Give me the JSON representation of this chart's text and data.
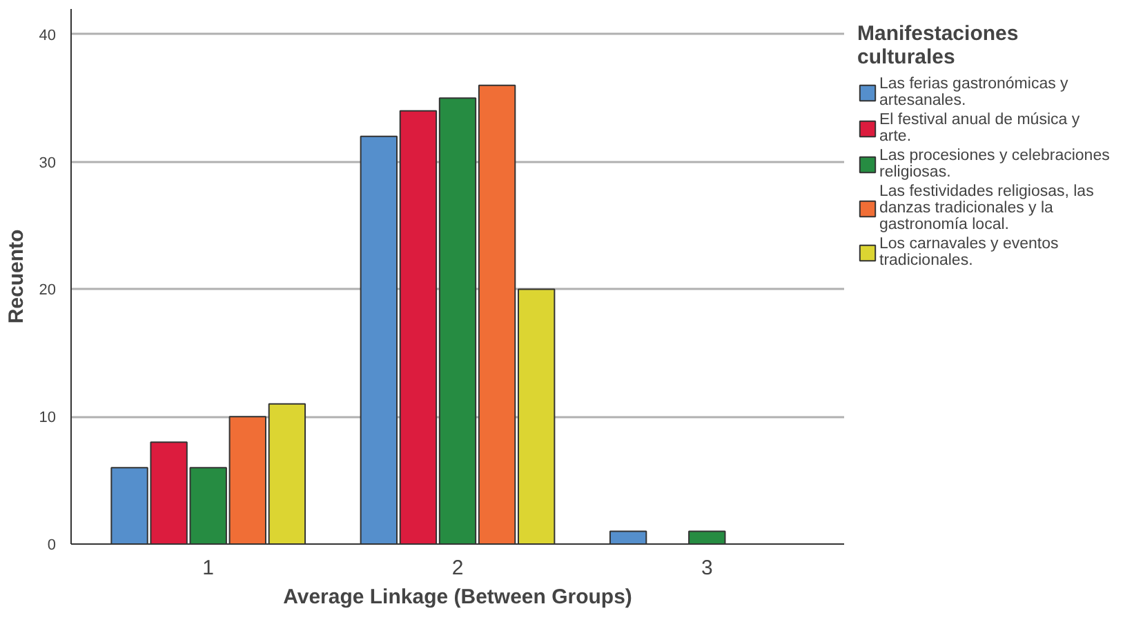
{
  "chart_data": {
    "type": "bar",
    "xlabel": "Average Linkage (Between Groups)",
    "ylabel": "Recuento",
    "legend_title": "Manifestaciones culturales",
    "categories": [
      "1",
      "2",
      "3"
    ],
    "series": [
      {
        "name": "Las ferias gastronómicas y artesanales.",
        "color": "#558fcc",
        "values": [
          6,
          32,
          1
        ]
      },
      {
        "name": "El festival anual de música y arte.",
        "color": "#dc1c3e",
        "values": [
          8,
          34,
          null
        ]
      },
      {
        "name": "Las procesiones y celebraciones religiosas.",
        "color": "#268c42",
        "values": [
          6,
          35,
          1
        ]
      },
      {
        "name": "Las festividades religiosas, las danzas tradicionales y la gastronomía local.",
        "color": "#f06e36",
        "values": [
          10,
          36,
          null
        ]
      },
      {
        "name": "Los carnavales y eventos tradicionales.",
        "color": "#dcd532",
        "values": [
          11,
          20,
          null
        ]
      }
    ],
    "ylim": [
      0,
      42
    ],
    "yticks": [
      0,
      10,
      20,
      30,
      40
    ],
    "grid": "y",
    "legend": "right"
  }
}
